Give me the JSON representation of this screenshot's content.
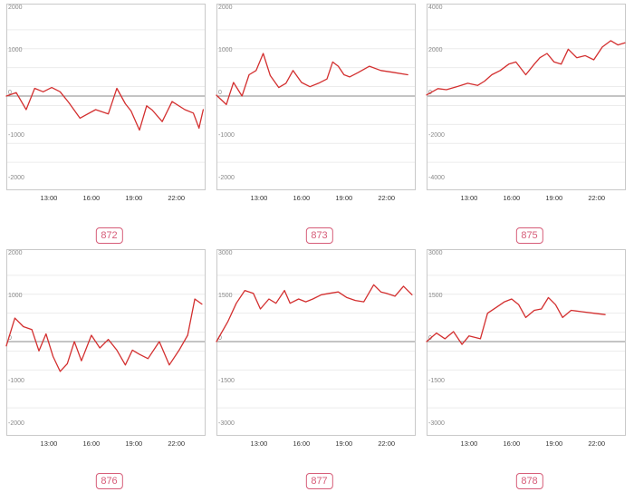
{
  "colors": {
    "line": "#d32f2f",
    "badge": "#d65c78",
    "axis": "#8a8a8a",
    "grid": "#ececec",
    "frame": "#c9c9c9"
  },
  "chart_data": [
    {
      "type": "line",
      "id_label": "872",
      "ylim": [
        -2000,
        2000
      ],
      "yticks": [
        2000,
        1000,
        0,
        -1000,
        -2000
      ],
      "ytick_labels": [
        "2000",
        "1000",
        "0",
        "-1000",
        "-2000"
      ],
      "xlim": [
        10.0,
        24.0
      ],
      "xticks": [
        13,
        16,
        19,
        22
      ],
      "xtick_labels": [
        "13:00",
        "16:00",
        "19:00",
        "22:00"
      ],
      "x": [
        10.0,
        10.7,
        11.4,
        12.0,
        12.6,
        13.2,
        13.8,
        14.4,
        15.2,
        16.3,
        17.2,
        17.8,
        18.4,
        18.8,
        19.4,
        19.9,
        20.3,
        21.0,
        21.7,
        22.6,
        23.2,
        23.6
      ],
      "y": [
        0,
        80,
        -320,
        180,
        100,
        200,
        100,
        -150,
        -520,
        -320,
        -420,
        180,
        -180,
        -350,
        -800,
        -230,
        -330,
        -600,
        -130,
        -320,
        -400,
        -750
      ],
      "tail": {
        "x": [
          23.6,
          23.9
        ],
        "y": [
          -750,
          -320
        ]
      }
    },
    {
      "type": "line",
      "id_label": "873",
      "ylim": [
        -2000,
        2000
      ],
      "yticks": [
        2000,
        1000,
        0,
        -1000,
        -2000
      ],
      "ytick_labels": [
        "2000",
        "1000",
        "0",
        "-1000",
        "-2000"
      ],
      "xlim": [
        10.0,
        24.0
      ],
      "xticks": [
        13,
        16,
        19,
        22
      ],
      "xtick_labels": [
        "13:00",
        "16:00",
        "19:00",
        "22:00"
      ],
      "x": [
        10.0,
        10.7,
        11.2,
        11.8,
        12.3,
        12.8,
        13.3,
        13.8,
        14.4,
        14.9,
        15.4,
        16.0,
        16.6,
        17.2,
        17.8,
        18.2,
        18.6,
        19.0,
        19.4,
        20.0,
        20.8,
        21.6,
        22.4,
        23.5
      ],
      "y": [
        20,
        -200,
        320,
        0,
        500,
        600,
        1000,
        480,
        200,
        300,
        600,
        320,
        220,
        300,
        400,
        800,
        700,
        500,
        450,
        550,
        700,
        600,
        560,
        500
      ]
    },
    {
      "type": "line",
      "id_label": "875",
      "ylim": [
        -4000,
        4000
      ],
      "yticks": [
        4000,
        2000,
        0,
        -2000,
        -4000
      ],
      "ytick_labels": [
        "4000",
        "2000",
        "0",
        "-2000",
        "-4000"
      ],
      "xlim": [
        10.0,
        24.0
      ],
      "xticks": [
        13,
        16,
        19,
        22
      ],
      "xtick_labels": [
        "13:00",
        "16:00",
        "19:00",
        "22:00"
      ],
      "x": [
        10.0,
        10.8,
        11.4,
        12.2,
        12.9,
        13.6,
        14.1,
        14.6,
        15.2,
        15.8,
        16.3,
        17.0,
        17.6,
        18.0,
        18.5,
        19.0,
        19.5,
        20.0,
        20.6,
        21.2,
        21.8,
        22.4,
        23.0,
        23.5,
        24.0
      ],
      "y": [
        50,
        350,
        300,
        450,
        600,
        500,
        700,
        1000,
        1200,
        1500,
        1600,
        1000,
        1500,
        1800,
        2000,
        1600,
        1500,
        2200,
        1800,
        1900,
        1700,
        2300,
        2600,
        2400,
        2500
      ]
    },
    {
      "type": "line",
      "id_label": "876",
      "ylim": [
        -2000,
        2000
      ],
      "yticks": [
        2000,
        1000,
        0,
        -1000,
        -2000
      ],
      "ytick_labels": [
        "2000",
        "1000",
        "0",
        "-1000",
        "-2000"
      ],
      "xlim": [
        10.0,
        24.0
      ],
      "xticks": [
        13,
        16,
        19,
        22
      ],
      "xtick_labels": [
        "13:00",
        "16:00",
        "19:00",
        "22:00"
      ],
      "x": [
        10.0,
        10.6,
        11.2,
        11.8,
        12.3,
        12.8,
        13.3,
        13.8,
        14.3,
        14.8,
        15.3,
        16.0,
        16.6,
        17.2,
        17.8,
        18.4,
        18.9,
        19.4,
        20.0,
        20.8,
        21.5,
        22.2,
        22.8,
        23.3,
        23.8
      ],
      "y": [
        -100,
        550,
        350,
        280,
        -220,
        180,
        -350,
        -700,
        -520,
        0,
        -450,
        150,
        -150,
        50,
        -200,
        -550,
        -200,
        -300,
        -400,
        0,
        -550,
        -200,
        150,
        1000,
        880
      ]
    },
    {
      "type": "line",
      "id_label": "877",
      "ylim": [
        -3000,
        3000
      ],
      "yticks": [
        3000,
        1500,
        0,
        -1500,
        -3000
      ],
      "ytick_labels": [
        "3000",
        "1500",
        "0",
        "-1500",
        "-3000"
      ],
      "xlim": [
        10.0,
        24.0
      ],
      "xticks": [
        13,
        16,
        19,
        22
      ],
      "xtick_labels": [
        "13:00",
        "16:00",
        "19:00",
        "22:00"
      ],
      "x": [
        10.0,
        10.8,
        11.4,
        12.0,
        12.6,
        13.1,
        13.7,
        14.2,
        14.8,
        15.2,
        15.8,
        16.3,
        16.8,
        17.4,
        18.0,
        18.6,
        19.2,
        19.8,
        20.4,
        21.1,
        21.6,
        22.0,
        22.6,
        23.2,
        23.8
      ],
      "y": [
        0,
        700,
        1350,
        1800,
        1700,
        1150,
        1500,
        1350,
        1800,
        1350,
        1500,
        1400,
        1500,
        1650,
        1700,
        1750,
        1550,
        1450,
        1400,
        2000,
        1750,
        1700,
        1600,
        1950,
        1650
      ]
    },
    {
      "type": "line",
      "id_label": "878",
      "ylim": [
        -3000,
        3000
      ],
      "yticks": [
        3000,
        1500,
        0,
        -1500,
        -3000
      ],
      "ytick_labels": [
        "3000",
        "1500",
        "0",
        "-1500",
        "-3000"
      ],
      "xlim": [
        10.0,
        24.0
      ],
      "xticks": [
        13,
        16,
        19,
        22
      ],
      "xtick_labels": [
        "13:00",
        "16:00",
        "19:00",
        "22:00"
      ],
      "x": [
        10.0,
        10.7,
        11.3,
        11.9,
        12.5,
        13.0,
        13.8,
        14.3,
        14.9,
        15.5,
        16.0,
        16.5,
        17.0,
        17.6,
        18.1,
        18.6,
        19.1,
        19.6,
        20.2,
        21.0,
        21.8,
        22.6
      ],
      "y": [
        0,
        300,
        100,
        350,
        -100,
        200,
        100,
        1000,
        1200,
        1400,
        1500,
        1300,
        850,
        1100,
        1150,
        1550,
        1300,
        850,
        1100,
        1050,
        1000,
        950
      ]
    }
  ]
}
